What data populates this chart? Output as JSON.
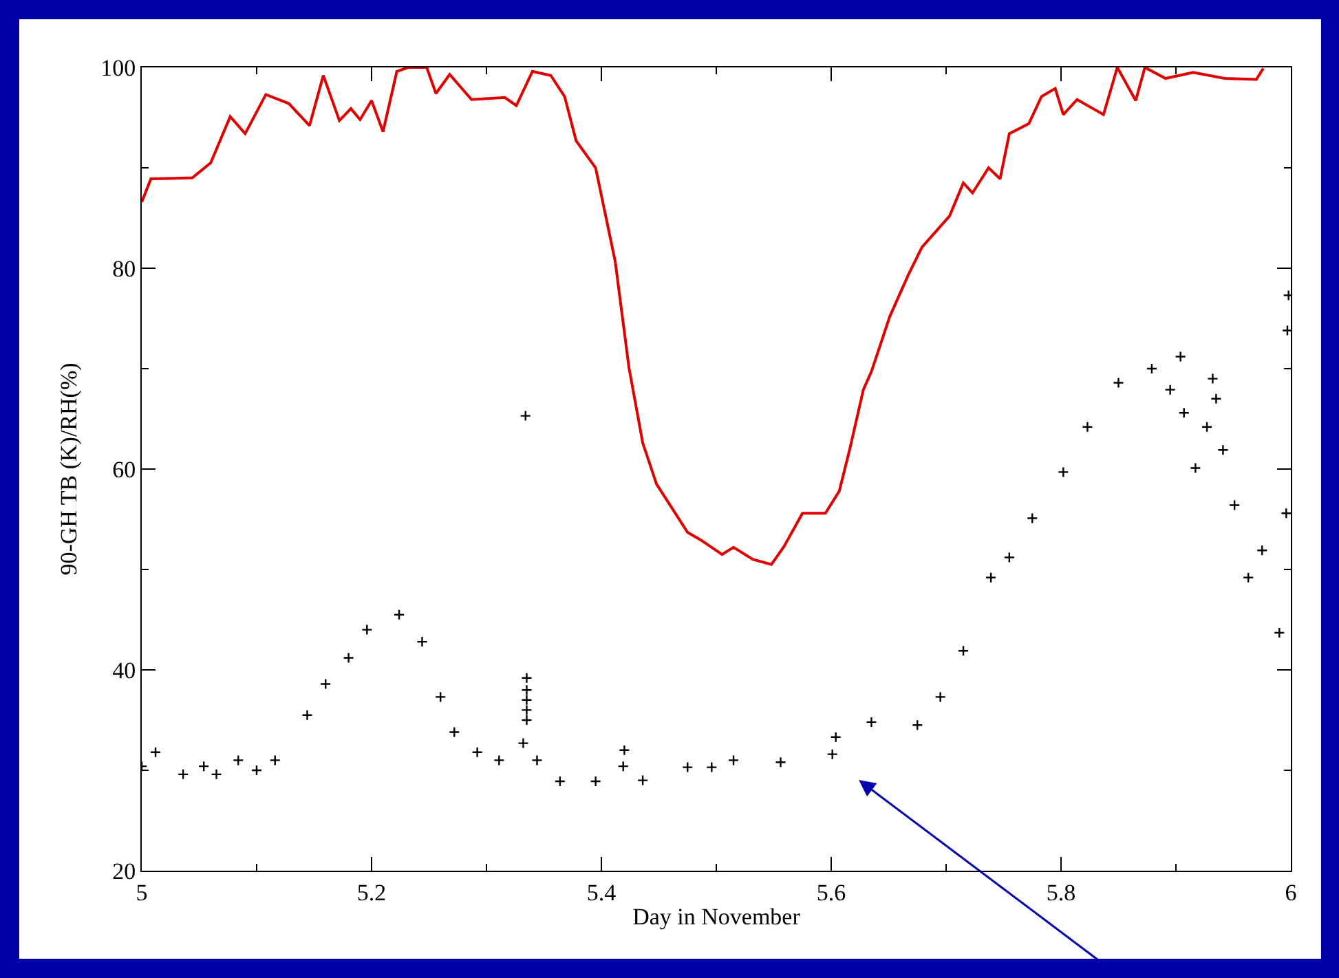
{
  "chart_data": {
    "type": "line",
    "xlabel": "Day in November",
    "ylabel": "90-GH TB (K)/RH(%)",
    "xlim": [
      5,
      6
    ],
    "xticks": [
      5,
      5.2,
      5.4,
      5.6,
      5.8,
      6
    ],
    "ylim": [
      20,
      100
    ],
    "yticks": [
      20,
      40,
      60,
      80,
      100
    ],
    "series": [
      {
        "color": "#e00000",
        "line_style": "solid",
        "x": [
          5.0,
          5.008,
          5.044,
          5.06,
          5.077,
          5.09,
          5.108,
          5.128,
          5.146,
          5.158,
          5.172,
          5.182,
          5.19,
          5.2,
          5.21,
          5.222,
          5.232,
          5.248,
          5.256,
          5.268,
          5.287,
          5.316,
          5.326,
          5.34,
          5.356,
          5.368,
          5.378,
          5.395,
          5.412,
          5.424,
          5.436,
          5.448,
          5.475,
          5.487,
          5.505,
          5.515,
          5.532,
          5.548,
          5.559,
          5.575,
          5.595,
          5.607,
          5.616,
          5.628,
          5.635,
          5.651,
          5.667,
          5.679,
          5.703,
          5.715,
          5.723,
          5.737,
          5.747,
          5.755,
          5.772,
          5.783,
          5.795,
          5.802,
          5.814,
          5.837,
          5.849,
          5.865,
          5.873,
          5.891,
          5.915,
          5.943,
          5.97,
          5.976
        ],
        "values": [
          86.6,
          88.9,
          89.0,
          90.5,
          95.1,
          93.4,
          97.3,
          96.4,
          94.2,
          99.2,
          94.7,
          95.9,
          94.8,
          96.7,
          93.6,
          99.6,
          100,
          100,
          97.4,
          99.3,
          96.8,
          97.0,
          96.2,
          99.6,
          99.2,
          97.1,
          92.7,
          90.0,
          80.7,
          70.1,
          62.6,
          58.5,
          53.7,
          52.9,
          51.5,
          52.2,
          51.0,
          50.5,
          52.3,
          55.6,
          55.6,
          57.8,
          61.9,
          67.9,
          69.7,
          75.2,
          79.3,
          82.1,
          85.2,
          88.5,
          87.5,
          90.0,
          88.9,
          93.4,
          94.4,
          97.1,
          97.9,
          95.3,
          96.8,
          95.3,
          100,
          96.7,
          100,
          98.9,
          99.5,
          98.9,
          98.8,
          99.9
        ]
      },
      {
        "type": "scatter",
        "color": "#000000",
        "marker": "cross",
        "x": [
          5.0,
          5.012,
          5.036,
          5.054,
          5.065,
          5.084,
          5.1,
          5.116,
          5.144,
          5.16,
          5.18,
          5.196,
          5.224,
          5.244,
          5.26,
          5.272,
          5.292,
          5.311,
          5.332,
          5.334,
          5.335,
          5.335,
          5.335,
          5.335,
          5.335,
          5.344,
          5.364,
          5.395,
          5.419,
          5.42,
          5.436,
          5.475,
          5.496,
          5.515,
          5.556,
          5.601,
          5.604,
          5.635,
          5.675,
          5.695,
          5.715,
          5.739,
          5.755,
          5.775,
          5.802,
          5.823,
          5.85,
          5.879,
          5.895,
          5.904,
          5.907,
          5.917,
          5.927,
          5.932,
          5.935,
          5.941,
          5.951,
          5.963,
          5.975,
          5.99,
          5.996,
          5.997,
          5.998
        ],
        "values": [
          30.4,
          31.8,
          29.6,
          30.4,
          29.6,
          31.0,
          30.0,
          31.0,
          35.5,
          38.6,
          41.2,
          44.0,
          45.5,
          42.8,
          37.3,
          33.8,
          31.8,
          31.0,
          32.7,
          65.3,
          39.2,
          38.0,
          37.0,
          36.0,
          35.0,
          31.0,
          28.9,
          28.9,
          30.4,
          32.0,
          29.0,
          30.3,
          30.3,
          31.0,
          30.8,
          31.6,
          33.3,
          34.8,
          34.5,
          37.3,
          41.9,
          49.2,
          51.2,
          55.1,
          59.7,
          64.2,
          68.6,
          70.0,
          67.9,
          71.2,
          65.6,
          60.1,
          64.2,
          69.0,
          67.0,
          61.9,
          56.4,
          49.2,
          51.9,
          43.7,
          55.6,
          73.8,
          77.3
        ]
      }
    ]
  }
}
